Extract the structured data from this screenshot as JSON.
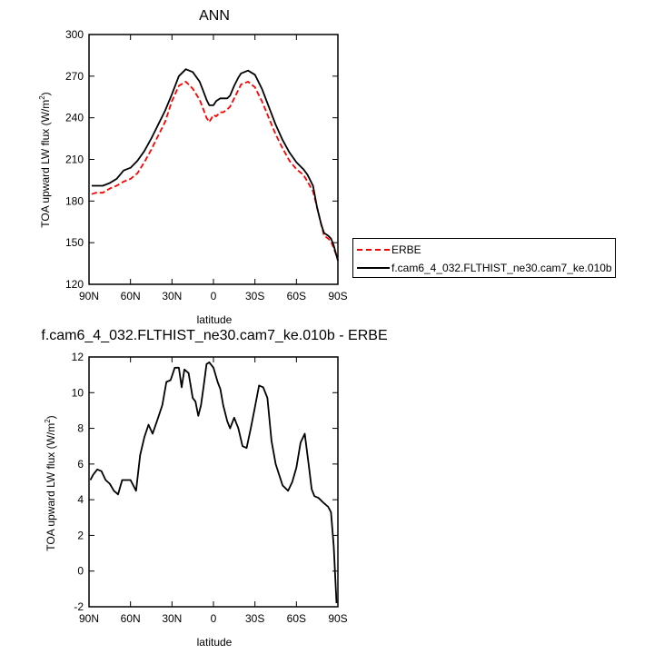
{
  "chart_data": [
    {
      "type": "line",
      "title": "ANN",
      "xlabel": "latitude",
      "ylabel": "TOA upward LW flux (W/m",
      "ylabel_sup": "2",
      "ylabel_close": ")",
      "xlim": [
        90,
        -90
      ],
      "ylim": [
        120,
        300
      ],
      "xticks": [
        90,
        60,
        30,
        0,
        -30,
        -60,
        -90
      ],
      "xtick_labels": [
        "90N",
        "60N",
        "30N",
        "0",
        "30S",
        "60S",
        "90S"
      ],
      "yticks": [
        120,
        150,
        180,
        210,
        240,
        270,
        300
      ],
      "ytick_labels": [
        "120",
        "150",
        "180",
        "210",
        "240",
        "270",
        "300"
      ],
      "grid": false,
      "legend_position": "right",
      "series": [
        {
          "name": "ERBE",
          "color": "#ff0000",
          "dash": "dashed",
          "x": [
            -90,
            -87,
            -85,
            -83,
            -80,
            -78,
            -75,
            -72,
            -68,
            -65,
            -60,
            -55,
            -50,
            -45,
            -40,
            -35,
            -30,
            -25,
            -20,
            -18,
            -15,
            -12,
            -10,
            -7,
            -5,
            -2,
            0,
            3,
            5,
            8,
            10,
            15,
            20,
            25,
            30,
            35,
            40,
            45,
            50,
            55,
            60,
            65,
            70,
            75,
            80,
            85,
            88
          ],
          "y": [
            138,
            146,
            151,
            153,
            155,
            163,
            175,
            187,
            194,
            199,
            203,
            209,
            218,
            228,
            240,
            252,
            262,
            266,
            264,
            260,
            254,
            248,
            246,
            244,
            244,
            241,
            242,
            237,
            240,
            248,
            253,
            261,
            266,
            263,
            252,
            237,
            227,
            217,
            208,
            200,
            196,
            194,
            191,
            189,
            186,
            186,
            185
          ]
        },
        {
          "name": "f.cam6_4_032.FLTHIST_ne30.cam7_ke.010b",
          "color": "#000000",
          "dash": "solid",
          "x": [
            -90,
            -87,
            -85,
            -83,
            -80,
            -78,
            -75,
            -72,
            -68,
            -65,
            -60,
            -55,
            -50,
            -45,
            -40,
            -35,
            -30,
            -25,
            -20,
            -18,
            -15,
            -12,
            -10,
            -7,
            -5,
            -2,
            0,
            3,
            5,
            8,
            10,
            15,
            20,
            25,
            30,
            35,
            40,
            45,
            50,
            55,
            60,
            65,
            70,
            75,
            80,
            85,
            88
          ],
          "y": [
            137,
            148,
            153,
            155,
            157,
            163,
            175,
            191,
            199,
            203,
            208,
            215,
            224,
            235,
            248,
            261,
            271,
            274,
            272,
            269,
            263,
            256,
            254,
            254,
            254,
            252,
            249,
            249,
            253,
            261,
            266,
            273,
            275,
            270,
            257,
            245,
            235,
            225,
            216,
            209,
            204,
            202,
            196,
            193,
            191,
            191,
            191
          ]
        }
      ]
    },
    {
      "type": "line",
      "title": "f.cam6_4_032.FLTHIST_ne30.cam7_ke.010b - ERBE",
      "xlabel": "latitude",
      "ylabel": "TOA upward LW flux (W/m",
      "ylabel_sup": "2",
      "ylabel_close": ")",
      "xlim": [
        90,
        -90
      ],
      "ylim": [
        -2,
        12
      ],
      "xticks": [
        90,
        60,
        30,
        0,
        -30,
        -60,
        -90
      ],
      "xtick_labels": [
        "90N",
        "60N",
        "30N",
        "0",
        "30S",
        "60S",
        "90S"
      ],
      "yticks": [
        -2,
        0,
        2,
        4,
        6,
        8,
        10,
        12
      ],
      "ytick_labels": [
        "-2",
        "0",
        "2",
        "4",
        "6",
        "8",
        "10",
        "12"
      ],
      "grid": false,
      "series": [
        {
          "color": "#000000",
          "dash": "solid",
          "x": [
            -89,
            -87,
            -85,
            -83,
            -80,
            -76,
            -73,
            -71,
            -69,
            -66,
            -63,
            -60,
            -57,
            -54,
            -50,
            -45,
            -42,
            -39,
            -36,
            -33,
            -30,
            -27,
            -24,
            -21,
            -18,
            -15,
            -12,
            -10,
            -7,
            -5,
            -3,
            0,
            3,
            5,
            7,
            9,
            11,
            13,
            15,
            18,
            21,
            23,
            25,
            28,
            31,
            34,
            37,
            40,
            44,
            47,
            50,
            53,
            56,
            60,
            63,
            66,
            69,
            72,
            75,
            78,
            81,
            84,
            87,
            89
          ],
          "y": [
            -1.8,
            1.4,
            3.3,
            3.6,
            3.8,
            4.1,
            4.2,
            4.6,
            5.9,
            7.7,
            7.2,
            5.8,
            5.0,
            4.5,
            4.8,
            6.0,
            7.3,
            9.7,
            10.3,
            10.4,
            9.2,
            8.0,
            6.9,
            7.0,
            8.0,
            8.6,
            8.0,
            8.4,
            9.3,
            10.2,
            10.6,
            11.4,
            11.7,
            11.6,
            10.4,
            9.3,
            8.7,
            9.5,
            9.7,
            11.1,
            11.3,
            10.3,
            11.4,
            11.4,
            10.7,
            10.6,
            9.3,
            8.6,
            7.7,
            8.2,
            7.5,
            6.5,
            4.5,
            5.1,
            5.1,
            5.1,
            4.3,
            4.5,
            4.9,
            5.1,
            5.6,
            5.7,
            5.4,
            5.1
          ]
        }
      ]
    }
  ]
}
